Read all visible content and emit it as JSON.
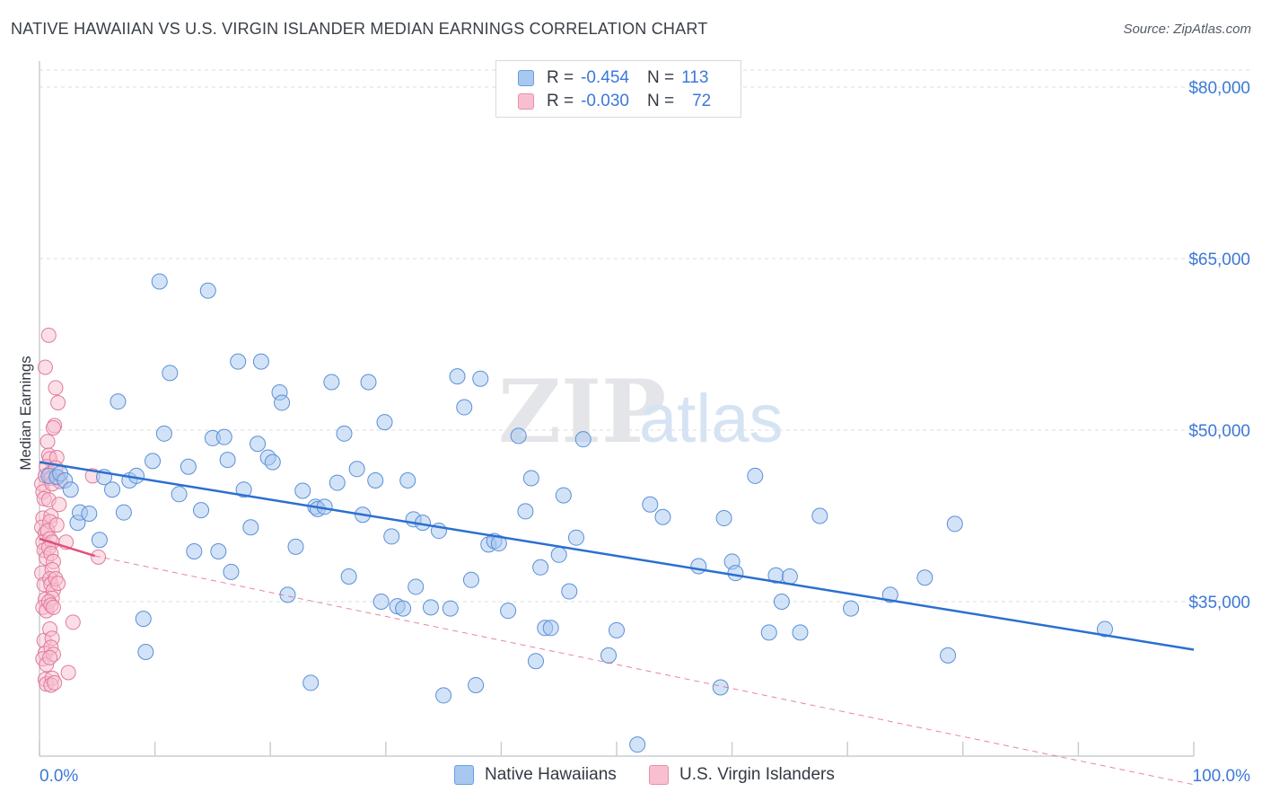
{
  "header": {
    "title": "NATIVE HAWAIIAN VS U.S. VIRGIN ISLANDER MEDIAN EARNINGS CORRELATION CHART",
    "source": "Source: ZipAtlas.com"
  },
  "watermark": {
    "zip": "ZIP",
    "atlas": "atlas"
  },
  "legend_top": {
    "rows": [
      {
        "r_label": "R =",
        "r_value": "-0.454",
        "n_label": "N =",
        "n_value": "113",
        "color": "#a8c8f0",
        "border": "#6a9ee0"
      },
      {
        "r_label": "R =",
        "r_value": "-0.030",
        "n_label": "N =",
        "n_value": "72",
        "color": "#f8bfd0",
        "border": "#e890aa"
      }
    ]
  },
  "legend_bottom": {
    "items": [
      {
        "label": "Native Hawaiians",
        "color": "#a8c8f0",
        "border": "#6a9ee0"
      },
      {
        "label": "U.S. Virgin Islanders",
        "color": "#f8bfd0",
        "border": "#e890aa"
      }
    ]
  },
  "colors": {
    "blue_point": "#a8c8f0",
    "blue_edge": "#5a8fd8",
    "blue_line": "#2a6fd0",
    "pink_point": "#f8bfd0",
    "pink_edge": "#e07a9c",
    "pink_line": "#e0507a",
    "grid": "#d8dce2",
    "tick_text": "#3c78d8"
  },
  "chart_data": {
    "type": "scatter",
    "title": "NATIVE HAWAIIAN VS U.S. VIRGIN ISLANDER MEDIAN EARNINGS CORRELATION CHART",
    "xlabel": "",
    "ylabel": "Median Earnings",
    "xlim": [
      0,
      100
    ],
    "ylim": [
      20000,
      83000
    ],
    "x_tick_labels": [
      "0.0%",
      "100.0%"
    ],
    "y_ticks": [
      35000,
      50000,
      65000,
      80000
    ],
    "y_tick_labels": [
      "$35,000",
      "$50,000",
      "$65,000",
      "$80,000"
    ],
    "grid": true,
    "legend_placement": "top-center",
    "series": [
      {
        "name": "Native Hawaiians",
        "r": -0.454,
        "n": 113,
        "trend": {
          "x": [
            0,
            100
          ],
          "y": [
            47200,
            30800
          ]
        },
        "points": [
          [
            0.8,
            46000
          ],
          [
            1.5,
            45900
          ],
          [
            1.8,
            46200
          ],
          [
            2.2,
            45600
          ],
          [
            2.7,
            44800
          ],
          [
            3.3,
            41900
          ],
          [
            3.5,
            42800
          ],
          [
            4.3,
            42700
          ],
          [
            5.2,
            40400
          ],
          [
            5.6,
            45900
          ],
          [
            6.3,
            44800
          ],
          [
            6.8,
            52500
          ],
          [
            7.3,
            42800
          ],
          [
            7.8,
            45600
          ],
          [
            8.4,
            46000
          ],
          [
            9.0,
            33500
          ],
          [
            9.2,
            30600
          ],
          [
            9.8,
            47300
          ],
          [
            10.4,
            63000
          ],
          [
            10.8,
            49700
          ],
          [
            11.3,
            55000
          ],
          [
            12.1,
            44400
          ],
          [
            12.9,
            46800
          ],
          [
            13.4,
            39400
          ],
          [
            14.0,
            43000
          ],
          [
            14.6,
            62200
          ],
          [
            15.0,
            49300
          ],
          [
            15.5,
            39400
          ],
          [
            16.0,
            49400
          ],
          [
            16.3,
            47400
          ],
          [
            16.6,
            37600
          ],
          [
            17.2,
            56000
          ],
          [
            17.7,
            44800
          ],
          [
            18.3,
            41500
          ],
          [
            18.9,
            48800
          ],
          [
            19.2,
            56000
          ],
          [
            19.8,
            47600
          ],
          [
            20.2,
            47200
          ],
          [
            20.8,
            53300
          ],
          [
            21.0,
            52400
          ],
          [
            21.5,
            35600
          ],
          [
            22.2,
            39800
          ],
          [
            22.8,
            44700
          ],
          [
            23.5,
            27900
          ],
          [
            23.9,
            43300
          ],
          [
            24.1,
            43100
          ],
          [
            24.7,
            43300
          ],
          [
            25.3,
            54200
          ],
          [
            25.8,
            45400
          ],
          [
            26.4,
            49700
          ],
          [
            26.8,
            37200
          ],
          [
            27.5,
            46600
          ],
          [
            28.0,
            42600
          ],
          [
            28.5,
            54200
          ],
          [
            29.1,
            45600
          ],
          [
            29.6,
            35000
          ],
          [
            29.9,
            50700
          ],
          [
            30.5,
            40700
          ],
          [
            31.0,
            34600
          ],
          [
            31.5,
            34400
          ],
          [
            31.9,
            45600
          ],
          [
            32.4,
            42200
          ],
          [
            32.6,
            36300
          ],
          [
            33.2,
            41900
          ],
          [
            33.9,
            34500
          ],
          [
            34.6,
            41200
          ],
          [
            35.0,
            26800
          ],
          [
            35.6,
            34400
          ],
          [
            36.2,
            54700
          ],
          [
            36.8,
            52000
          ],
          [
            37.4,
            36900
          ],
          [
            37.8,
            27700
          ],
          [
            38.2,
            54500
          ],
          [
            38.9,
            40000
          ],
          [
            39.4,
            40300
          ],
          [
            39.8,
            40100
          ],
          [
            40.6,
            34200
          ],
          [
            41.5,
            49500
          ],
          [
            42.1,
            42900
          ],
          [
            42.6,
            45800
          ],
          [
            43.0,
            29800
          ],
          [
            43.4,
            38000
          ],
          [
            43.8,
            32700
          ],
          [
            44.3,
            32700
          ],
          [
            45.0,
            39100
          ],
          [
            45.4,
            44300
          ],
          [
            45.9,
            35900
          ],
          [
            46.5,
            40600
          ],
          [
            47.1,
            49200
          ],
          [
            49.3,
            30300
          ],
          [
            50.0,
            32500
          ],
          [
            52.9,
            43500
          ],
          [
            54.0,
            42400
          ],
          [
            57.1,
            38100
          ],
          [
            59.0,
            27500
          ],
          [
            59.3,
            42300
          ],
          [
            60.0,
            38500
          ],
          [
            60.3,
            37500
          ],
          [
            62.0,
            46000
          ],
          [
            63.2,
            32300
          ],
          [
            63.8,
            37300
          ],
          [
            64.3,
            35000
          ],
          [
            65.0,
            37200
          ],
          [
            65.9,
            32300
          ],
          [
            67.6,
            42500
          ],
          [
            70.3,
            34400
          ],
          [
            73.7,
            35600
          ],
          [
            76.7,
            37100
          ],
          [
            78.7,
            30300
          ],
          [
            79.3,
            41800
          ],
          [
            92.3,
            32600
          ],
          [
            51.8,
            22500
          ]
        ]
      },
      {
        "name": "U.S. Virgin Islanders",
        "r": -0.03,
        "n": 72,
        "trend": {
          "x": [
            0,
            4.8
          ],
          "y": [
            40500,
            39000
          ]
        },
        "trend_ext": {
          "x": [
            4.8,
            100
          ],
          "y": [
            39000,
            19000
          ]
        },
        "points": [
          [
            0.2,
            45300
          ],
          [
            0.3,
            44600
          ],
          [
            0.4,
            44000
          ],
          [
            0.5,
            46000
          ],
          [
            0.3,
            42300
          ],
          [
            0.2,
            41500
          ],
          [
            0.5,
            41000
          ],
          [
            0.3,
            40200
          ],
          [
            0.4,
            39500
          ],
          [
            0.6,
            38800
          ],
          [
            0.2,
            37500
          ],
          [
            0.4,
            36500
          ],
          [
            0.5,
            35200
          ],
          [
            0.3,
            34500
          ],
          [
            0.6,
            34200
          ],
          [
            0.4,
            31600
          ],
          [
            0.5,
            30500
          ],
          [
            0.3,
            30000
          ],
          [
            0.6,
            29500
          ],
          [
            0.5,
            28200
          ],
          [
            0.6,
            27800
          ],
          [
            0.8,
            58300
          ],
          [
            0.5,
            55500
          ],
          [
            0.7,
            49000
          ],
          [
            0.8,
            47800
          ],
          [
            0.9,
            47500
          ],
          [
            0.6,
            46800
          ],
          [
            0.9,
            46200
          ],
          [
            1.0,
            45800
          ],
          [
            1.1,
            45300
          ],
          [
            0.8,
            43900
          ],
          [
            1.0,
            42500
          ],
          [
            0.9,
            42000
          ],
          [
            0.7,
            41200
          ],
          [
            0.9,
            40500
          ],
          [
            1.1,
            40200
          ],
          [
            0.8,
            39700
          ],
          [
            1.0,
            39200
          ],
          [
            1.2,
            38500
          ],
          [
            1.1,
            37800
          ],
          [
            0.9,
            37000
          ],
          [
            1.0,
            36500
          ],
          [
            1.2,
            36000
          ],
          [
            1.1,
            35300
          ],
          [
            0.8,
            35000
          ],
          [
            1.0,
            34700
          ],
          [
            1.2,
            34500
          ],
          [
            0.9,
            32600
          ],
          [
            1.1,
            31800
          ],
          [
            1.0,
            31000
          ],
          [
            1.2,
            30400
          ],
          [
            0.9,
            30100
          ],
          [
            1.1,
            28300
          ],
          [
            1.0,
            27700
          ],
          [
            1.3,
            27900
          ],
          [
            1.4,
            53700
          ],
          [
            1.6,
            52400
          ],
          [
            1.3,
            50400
          ],
          [
            1.2,
            50200
          ],
          [
            1.5,
            47600
          ],
          [
            1.4,
            46700
          ],
          [
            1.6,
            45900
          ],
          [
            1.8,
            45500
          ],
          [
            1.7,
            43500
          ],
          [
            1.5,
            41700
          ],
          [
            1.4,
            37000
          ],
          [
            1.6,
            36600
          ],
          [
            2.3,
            40200
          ],
          [
            2.5,
            28800
          ],
          [
            2.9,
            33200
          ],
          [
            4.6,
            46000
          ],
          [
            5.1,
            38900
          ]
        ]
      }
    ]
  }
}
